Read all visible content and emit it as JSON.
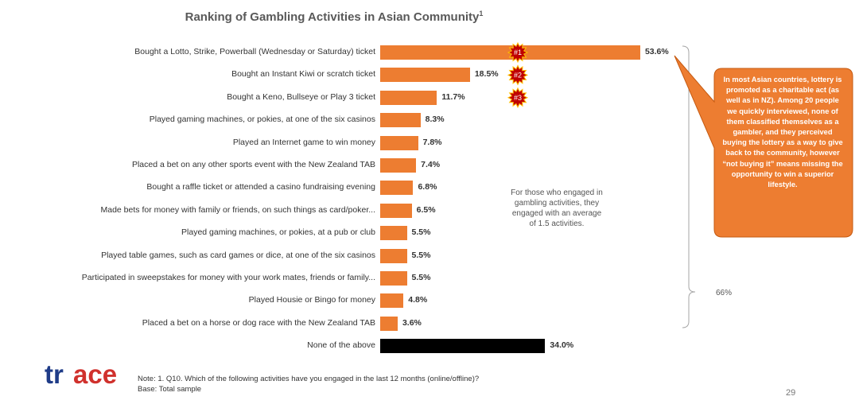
{
  "title": "Ranking of Gambling Activities in Asian Community",
  "title_superscript": "1",
  "chart_data": {
    "type": "bar",
    "orientation": "horizontal",
    "title": "Ranking of Gambling Activities in Asian Community",
    "xlabel": "",
    "ylabel": "",
    "xlim": [
      0,
      60
    ],
    "categories": [
      "Bought a Lotto, Strike, Powerball (Wednesday or Saturday) ticket",
      "Bought an Instant Kiwi or scratch ticket",
      "Bought a Keno, Bullseye or Play 3 ticket",
      "Played gaming machines, or pokies, at one of the six casinos",
      "Played an Internet game to win money",
      "Placed a bet on any other sports event with the New Zealand TAB",
      "Bought a raffle ticket or attended a casino fundraising evening",
      "Made bets for money with family or friends, on such things as card/poker...",
      "Played gaming machines, or pokies, at a pub or club",
      "Played table games, such as card games or dice, at one of the six casinos",
      "Participated in sweepstakes for money with your work mates, friends or family...",
      "Played Housie or Bingo for money",
      "Placed a bet on a horse or dog race with the New Zealand TAB",
      "None of the above"
    ],
    "values": [
      53.6,
      18.5,
      11.7,
      8.3,
      7.8,
      7.4,
      6.8,
      6.5,
      5.5,
      5.5,
      5.5,
      4.8,
      3.6,
      34.0
    ],
    "value_labels": [
      "53.6%",
      "18.5%",
      "11.7%",
      "8.3%",
      "7.8%",
      "7.4%",
      "6.8%",
      "6.5%",
      "5.5%",
      "5.5%",
      "5.5%",
      "4.8%",
      "3.6%",
      "34.0%"
    ],
    "bar_colors": [
      "#ED7D31",
      "#ED7D31",
      "#ED7D31",
      "#ED7D31",
      "#ED7D31",
      "#ED7D31",
      "#ED7D31",
      "#ED7D31",
      "#ED7D31",
      "#ED7D31",
      "#ED7D31",
      "#ED7D31",
      "#ED7D31",
      "#000000"
    ],
    "grid": false,
    "ranks": [
      "#1",
      "#2",
      "#3"
    ],
    "bracket_total_label": "66%"
  },
  "annotations": {
    "average_note": "For those who engaged in gambling activities, they engaged with an average of 1.5 activities.",
    "callout": "In most Asian countries, lottery is promoted as a charitable act (as well as in NZ). Among 20 people we quickly interviewed, none of them classified themselves as a gambler, and they perceived buying the lottery as a way to give back to the community, however “not buying it” means missing the opportunity to win a superior lifestyle."
  },
  "footer": {
    "note_line1": "Note: 1. Q10. Which of the following activities have you engaged in the last 12 months (online/offline)?",
    "note_line2": "Base: Total sample",
    "page_number": "29",
    "logo_text": "trace"
  },
  "colors": {
    "accent_orange": "#ED7D31",
    "badge_red": "#C00000",
    "none_bar": "#000000",
    "logo_blue": "#1F3C88",
    "logo_red": "#D0312D"
  }
}
